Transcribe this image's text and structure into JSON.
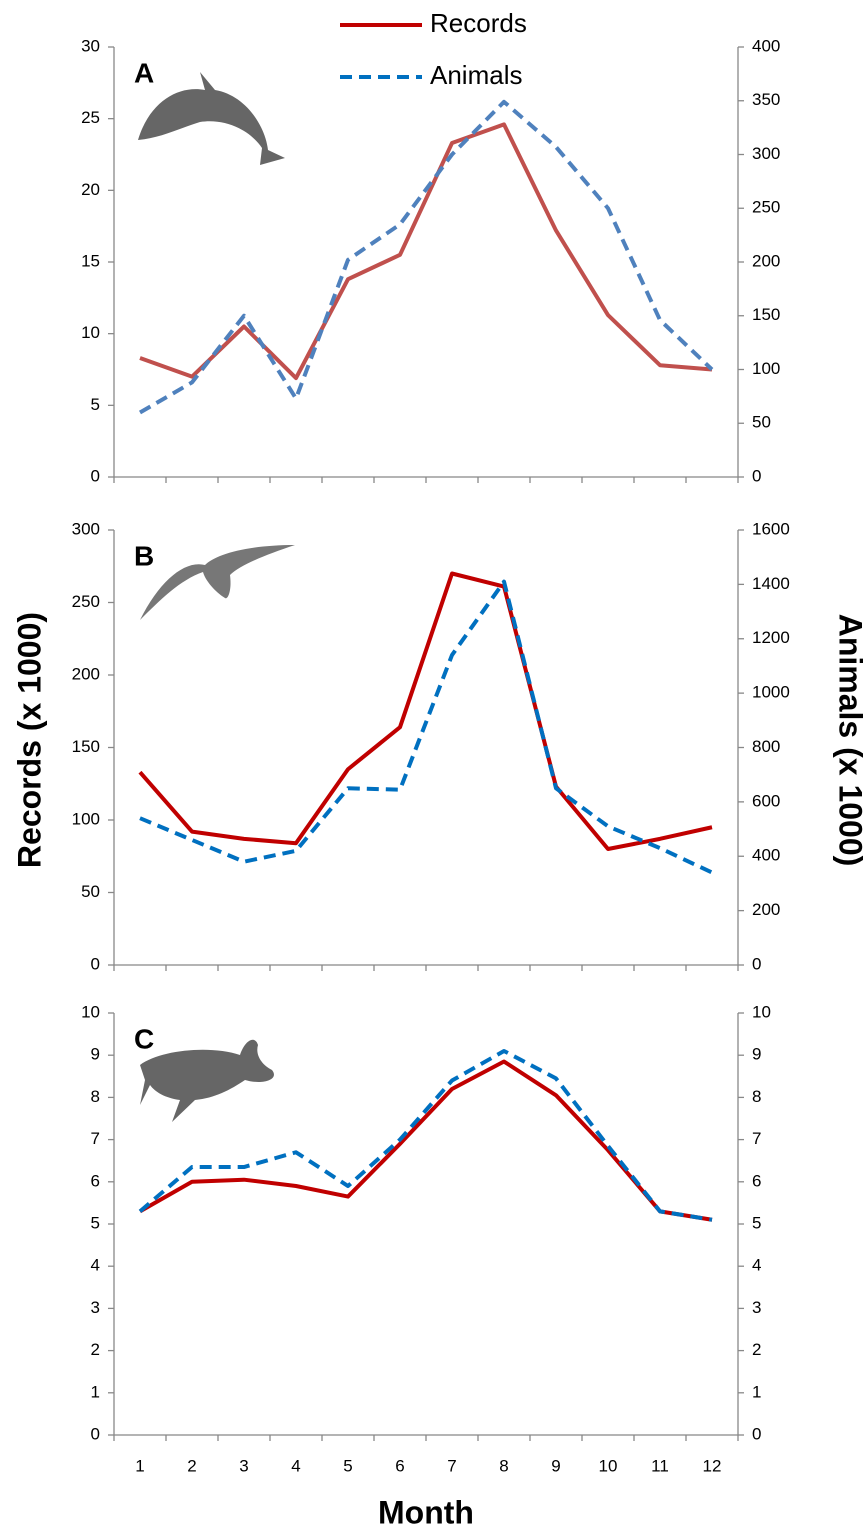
{
  "y_label": "Records (x 1000)",
  "y2_label": "Animals (x 1000)",
  "x_axis": {
    "label": "Month",
    "categories": [
      "1",
      "2",
      "3",
      "4",
      "5",
      "6",
      "7",
      "8",
      "9",
      "10",
      "11",
      "12"
    ]
  },
  "chart_data": [
    {
      "type": "line",
      "label": "A",
      "ylim": [
        0,
        30
      ],
      "yticks": [
        0,
        5,
        10,
        15,
        20,
        25,
        30
      ],
      "y2lim": [
        0,
        400
      ],
      "y2ticks": [
        0,
        50,
        100,
        150,
        200,
        250,
        300,
        350,
        400
      ],
      "series": [
        {
          "name": "Records",
          "color": "#c0504d",
          "line_style": "solid",
          "values": [
            8.3,
            7.0,
            10.5,
            6.9,
            13.8,
            15.5,
            23.3,
            24.6,
            17.2,
            11.3,
            7.8,
            7.5
          ]
        },
        {
          "name": "Animals",
          "color": "#4f81bd",
          "line_style": "dashed",
          "axis": "y2",
          "values": [
            60,
            88,
            150,
            73,
            202,
            235,
            300,
            349,
            307,
            250,
            146,
            100
          ]
        }
      ]
    },
    {
      "type": "line",
      "label": "B",
      "ylim": [
        0,
        300
      ],
      "yticks": [
        0,
        50,
        100,
        150,
        200,
        250,
        300
      ],
      "y2lim": [
        0,
        1600
      ],
      "y2ticks": [
        0,
        200,
        400,
        600,
        800,
        1000,
        1200,
        1400,
        1600
      ],
      "series": [
        {
          "name": "Records",
          "color": "#c00000",
          "line_style": "solid",
          "values": [
            133,
            92,
            87,
            84,
            135,
            164,
            270,
            261,
            123,
            80,
            87,
            95
          ]
        },
        {
          "name": "Animals",
          "color": "#0070c0",
          "line_style": "dashed",
          "axis": "y2",
          "values": [
            540,
            460,
            380,
            420,
            650,
            645,
            1140,
            1410,
            650,
            510,
            430,
            340
          ]
        }
      ]
    },
    {
      "type": "line",
      "label": "C",
      "ylim": [
        0,
        10
      ],
      "yticks": [
        0,
        1,
        2,
        3,
        4,
        5,
        6,
        7,
        8,
        9,
        10
      ],
      "y2lim": [
        0,
        10
      ],
      "y2ticks": [
        0,
        1,
        2,
        3,
        4,
        5,
        6,
        7,
        8,
        9,
        10
      ],
      "series": [
        {
          "name": "Records",
          "color": "#c00000",
          "line_style": "solid",
          "values": [
            5.3,
            6.0,
            6.05,
            5.9,
            5.65,
            6.9,
            8.2,
            8.85,
            8.05,
            6.75,
            5.3,
            5.1
          ]
        },
        {
          "name": "Animals",
          "color": "#0070c0",
          "line_style": "dashed",
          "axis": "y2",
          "values": [
            5.3,
            6.35,
            6.35,
            6.7,
            5.9,
            7.0,
            8.4,
            9.1,
            8.45,
            6.85,
            5.3,
            5.1
          ]
        }
      ]
    }
  ]
}
